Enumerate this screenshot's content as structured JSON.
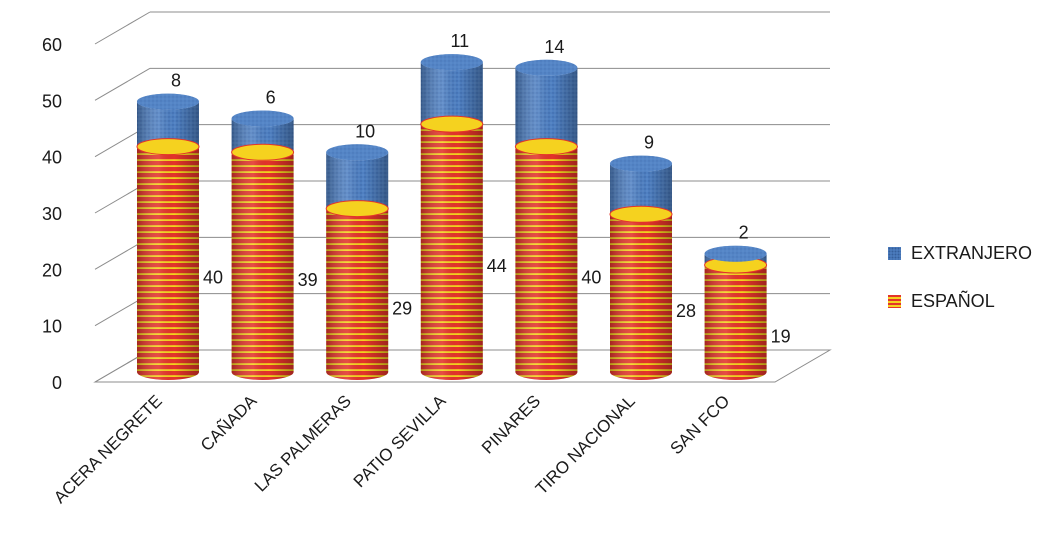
{
  "chart_data": {
    "type": "bar",
    "stacked": true,
    "style": "3d-cylinder",
    "categories": [
      "ACERA NEGRETE",
      "CAÑADA",
      "LAS PALMERAS",
      "PATIO SEVILLA",
      "PINARES",
      "TIRO NACIONAL",
      "SAN FCO"
    ],
    "series": [
      {
        "name": "ESPAÑOL",
        "values": [
          40,
          39,
          29,
          44,
          40,
          28,
          19
        ],
        "color": "#e3342a",
        "stripe_color": "#f5d21f"
      },
      {
        "name": "EXTRANJERO",
        "values": [
          8,
          6,
          10,
          11,
          14,
          9,
          2
        ],
        "color": "#4f80c2"
      }
    ],
    "ylim": [
      0,
      60
    ],
    "yticks": [
      0,
      10,
      20,
      30,
      40,
      50,
      60
    ],
    "grid": true,
    "legend_position": "right",
    "title": "",
    "xlabel": "",
    "ylabel": ""
  },
  "legend": {
    "extranjero": "EXTRANJERO",
    "espanol": "ESPAÑOL"
  }
}
